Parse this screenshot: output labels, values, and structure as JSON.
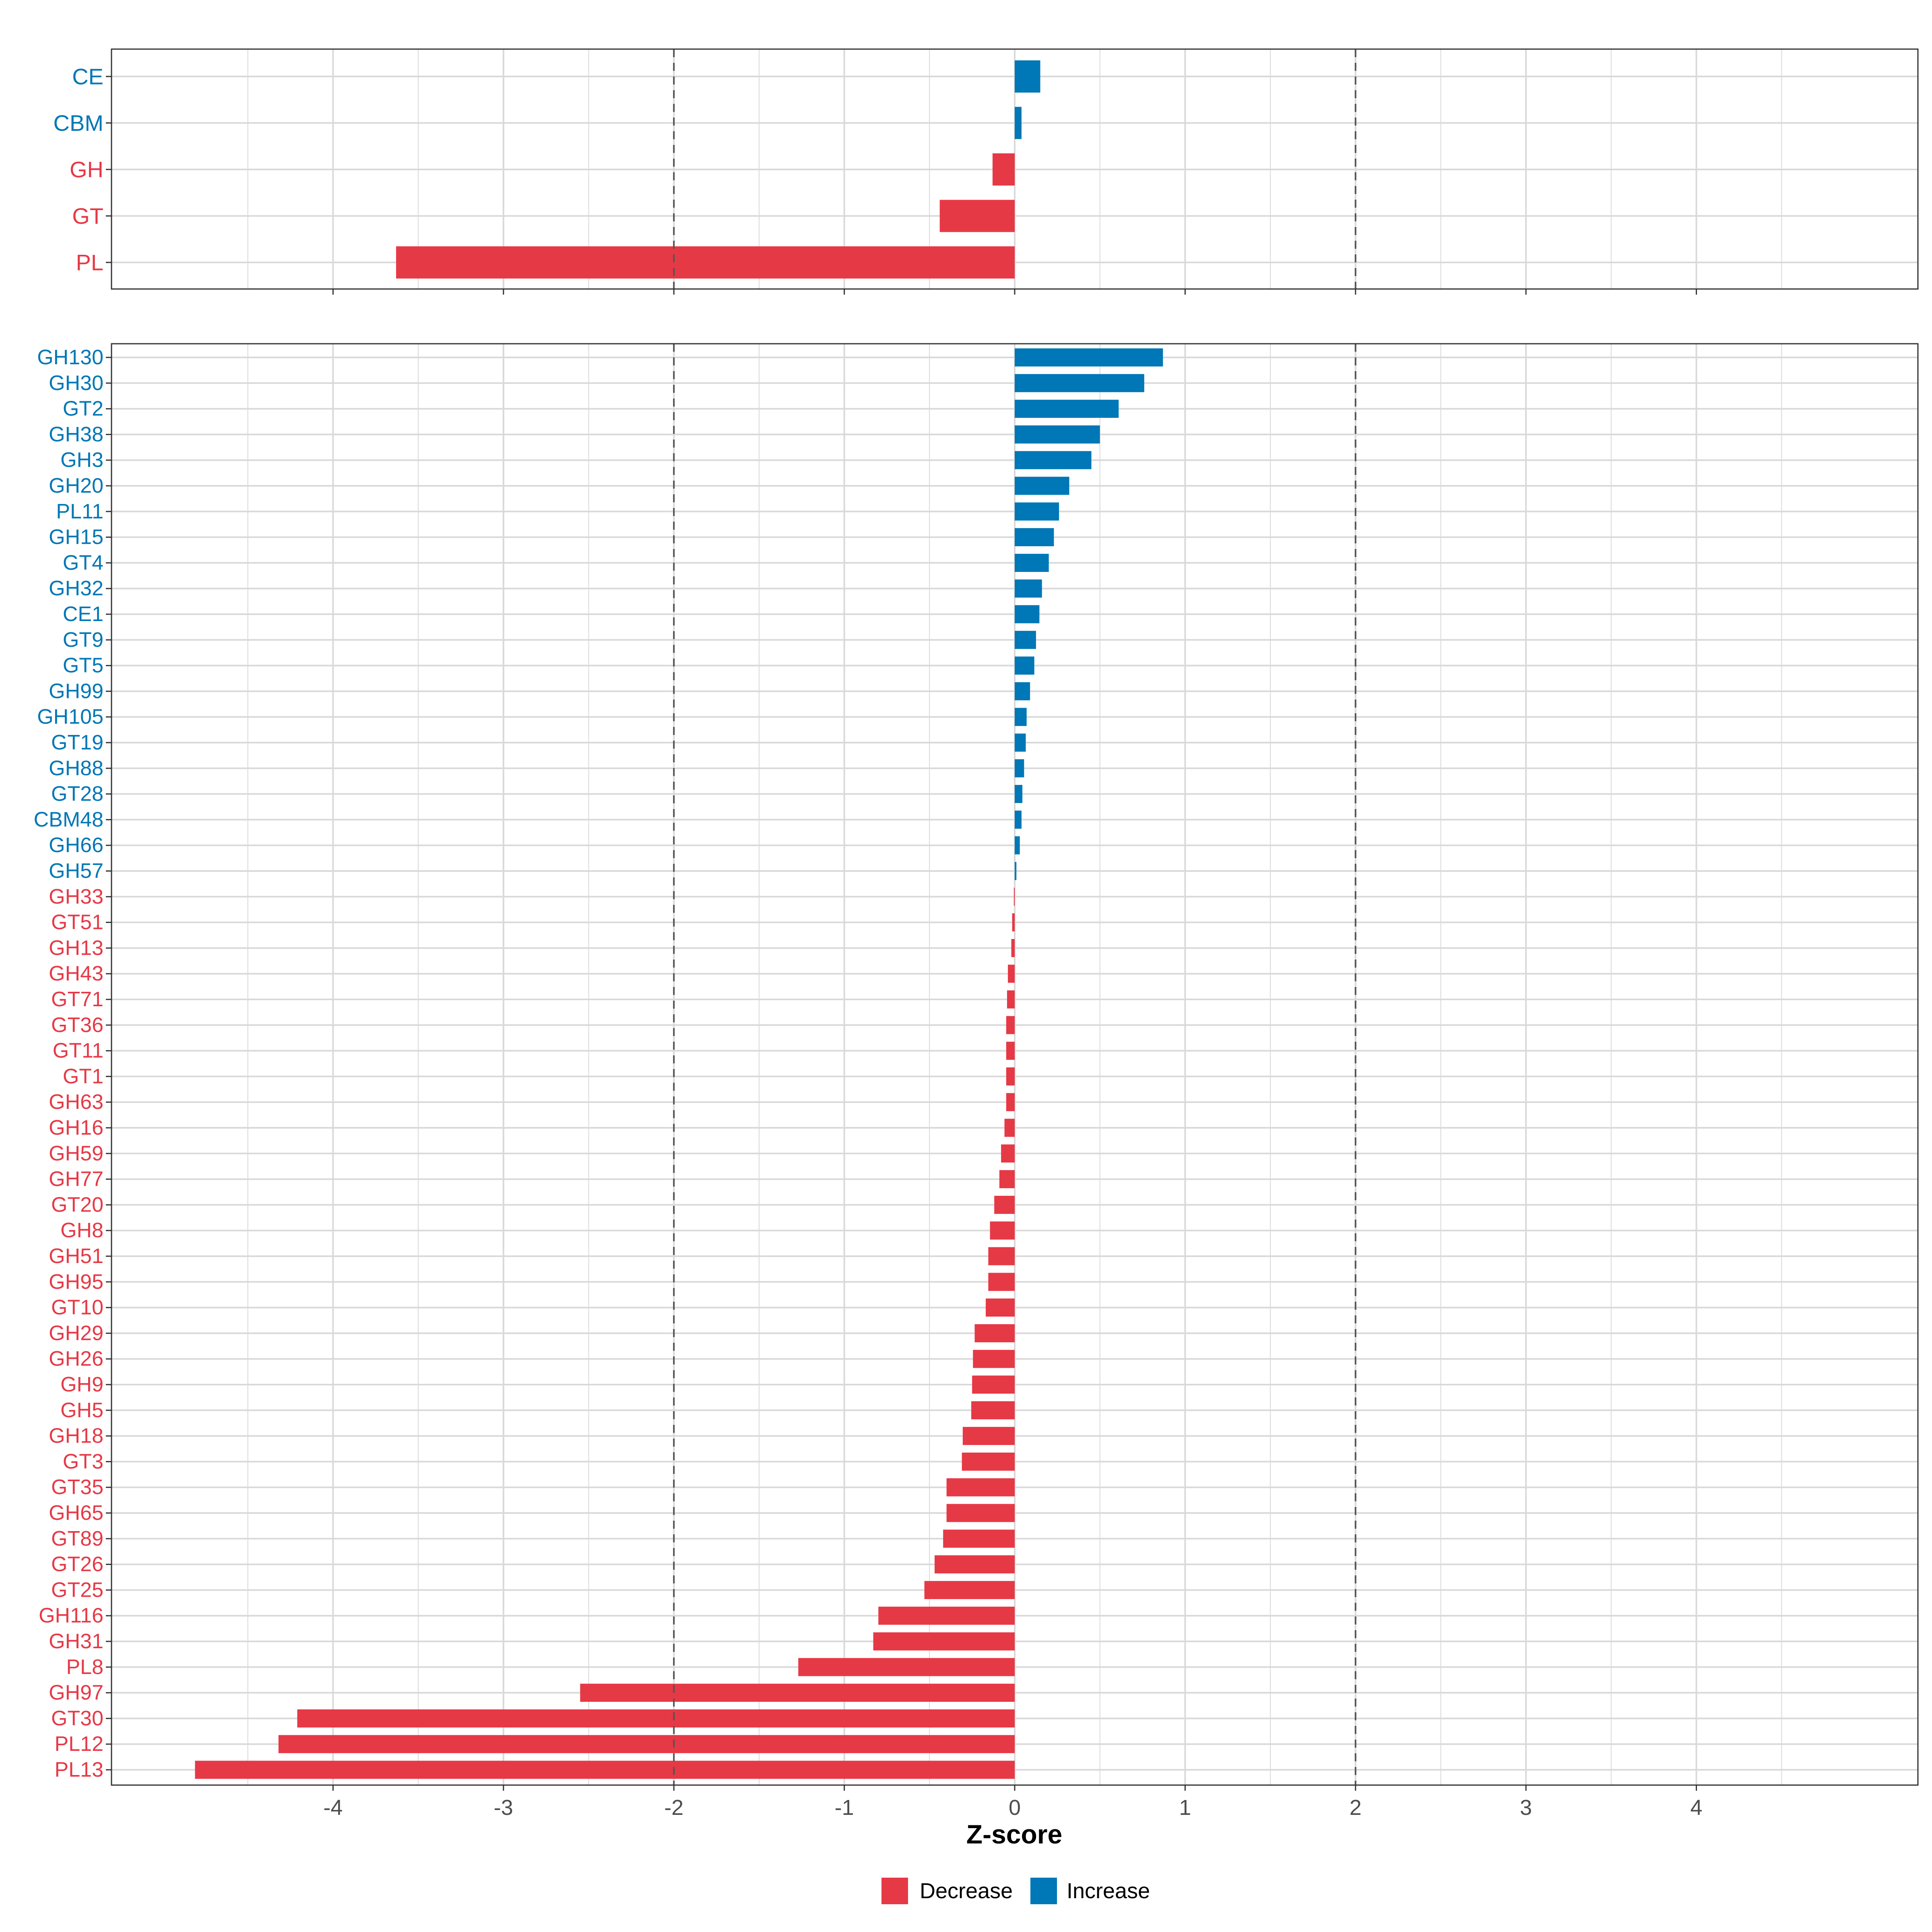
{
  "chart_data": [
    {
      "type": "bar",
      "orientation": "horizontal",
      "panel": "top",
      "categories": [
        "CE",
        "CBM",
        "GH",
        "GT",
        "PL"
      ],
      "values": [
        0.15,
        0.04,
        -0.13,
        -0.44,
        -3.63
      ],
      "xlim": [
        -5.3,
        5.3
      ],
      "reference_lines": [
        -2,
        2
      ],
      "grid": true
    },
    {
      "type": "bar",
      "orientation": "horizontal",
      "panel": "bottom",
      "categories": [
        "GH130",
        "GH30",
        "GT2",
        "GH38",
        "GH3",
        "GH20",
        "PL11",
        "GH15",
        "GT4",
        "GH32",
        "CE1",
        "GT9",
        "GT5",
        "GH99",
        "GH105",
        "GT19",
        "GH88",
        "GT28",
        "CBM48",
        "GH66",
        "GH57",
        "GH33",
        "GT51",
        "GH13",
        "GH43",
        "GT71",
        "GT36",
        "GT11",
        "GT1",
        "GH63",
        "GH16",
        "GH59",
        "GH77",
        "GT20",
        "GH8",
        "GH51",
        "GH95",
        "GT10",
        "GH29",
        "GH26",
        "GH9",
        "GH5",
        "GH18",
        "GT3",
        "GT35",
        "GH65",
        "GT89",
        "GT26",
        "GT25",
        "GH116",
        "GH31",
        "PL8",
        "GH97",
        "GT30",
        "PL12",
        "PL13"
      ],
      "values": [
        0.87,
        0.76,
        0.61,
        0.5,
        0.45,
        0.32,
        0.26,
        0.23,
        0.2,
        0.16,
        0.145,
        0.125,
        0.115,
        0.09,
        0.07,
        0.065,
        0.055,
        0.045,
        0.04,
        0.03,
        0.01,
        -0.005,
        -0.015,
        -0.02,
        -0.04,
        -0.045,
        -0.05,
        -0.05,
        -0.05,
        -0.05,
        -0.06,
        -0.08,
        -0.09,
        -0.12,
        -0.145,
        -0.155,
        -0.155,
        -0.17,
        -0.235,
        -0.245,
        -0.25,
        -0.255,
        -0.305,
        -0.31,
        -0.4,
        -0.4,
        -0.42,
        -0.47,
        -0.53,
        -0.8,
        -0.83,
        -1.27,
        -2.55,
        -4.21,
        -4.32,
        -4.81
      ],
      "xlim": [
        -5.3,
        5.3
      ],
      "x_ticks": [
        -4,
        -3,
        -2,
        -1,
        0,
        1,
        2,
        3,
        4
      ],
      "x_tick_labels": [
        "-4",
        "-3",
        "-2",
        "-1",
        "0",
        "1",
        "2",
        "3",
        "4"
      ],
      "xlabel": "Z-score",
      "reference_lines": [
        -2,
        2
      ],
      "grid": true
    }
  ],
  "legend": {
    "position": "bottom",
    "items": [
      {
        "label": "Decrease",
        "color": "#E63946"
      },
      {
        "label": "Increase",
        "color": "#0077B6"
      }
    ]
  },
  "colors": {
    "decrease": "#E63946",
    "increase": "#0077B6",
    "grid": "#D9D9D9",
    "reference": "#555555",
    "panel_border": "#333333",
    "axis_text": "#4D4D4D"
  }
}
